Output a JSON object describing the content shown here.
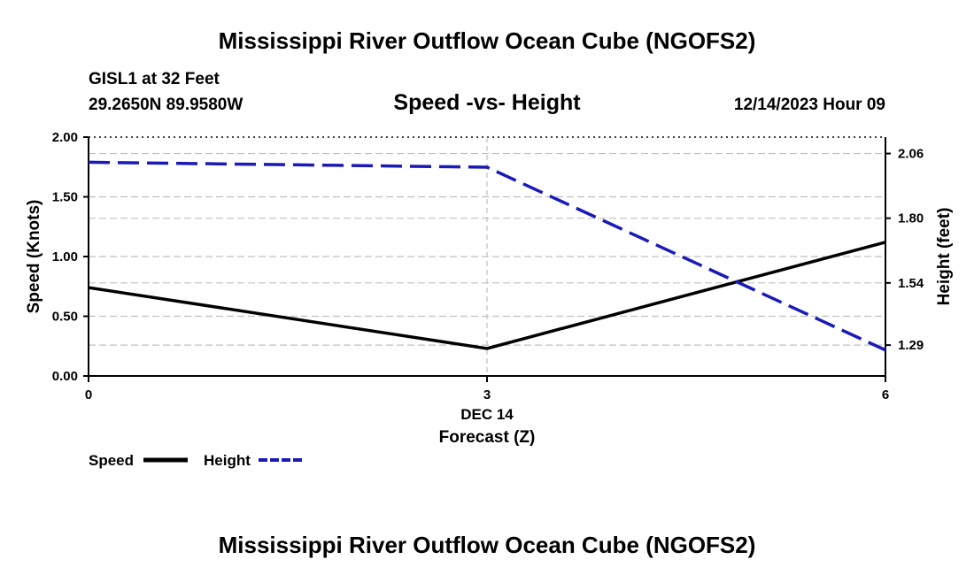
{
  "page": {
    "title_top": "Mississippi River Outflow Ocean Cube (NGOFS2)",
    "title_bottom": "Mississippi River Outflow Ocean Cube (NGOFS2)"
  },
  "station": {
    "name": "GISL1 at 32 Feet",
    "coords": "29.2650N  89.9580W",
    "datetime": "12/14/2023 Hour 09"
  },
  "chart_data": {
    "type": "line",
    "title": "Speed -vs- Height",
    "xlabel": "Forecast (Z)",
    "ylabel": "Speed (Knots)",
    "y2label": "Height (feet)",
    "x_date_label": "DEC 14",
    "x": [
      0,
      3,
      6
    ],
    "x_ticks": [
      "0",
      "3",
      "6"
    ],
    "xlim": [
      0,
      6
    ],
    "ylim": [
      0,
      2
    ],
    "y_ticks": [
      "0.00",
      "0.50",
      "1.00",
      "1.50",
      "2.00"
    ],
    "y2lim": [
      1.166,
      2.126
    ],
    "y2_ticks": [
      "1.29",
      "1.54",
      "1.80",
      "2.06"
    ],
    "y2_tick_values": [
      1.29,
      1.54,
      1.8,
      2.06
    ],
    "grid": true,
    "legend_position": "bottom-left",
    "series": [
      {
        "name": "Speed",
        "axis": "left",
        "style": "solid",
        "color": "#000000",
        "values": [
          0.74,
          0.23,
          1.12
        ]
      },
      {
        "name": "Height",
        "axis": "right",
        "style": "dashed",
        "color": "#1a1ab8",
        "values": [
          2.025,
          2.005,
          1.27
        ]
      }
    ]
  }
}
